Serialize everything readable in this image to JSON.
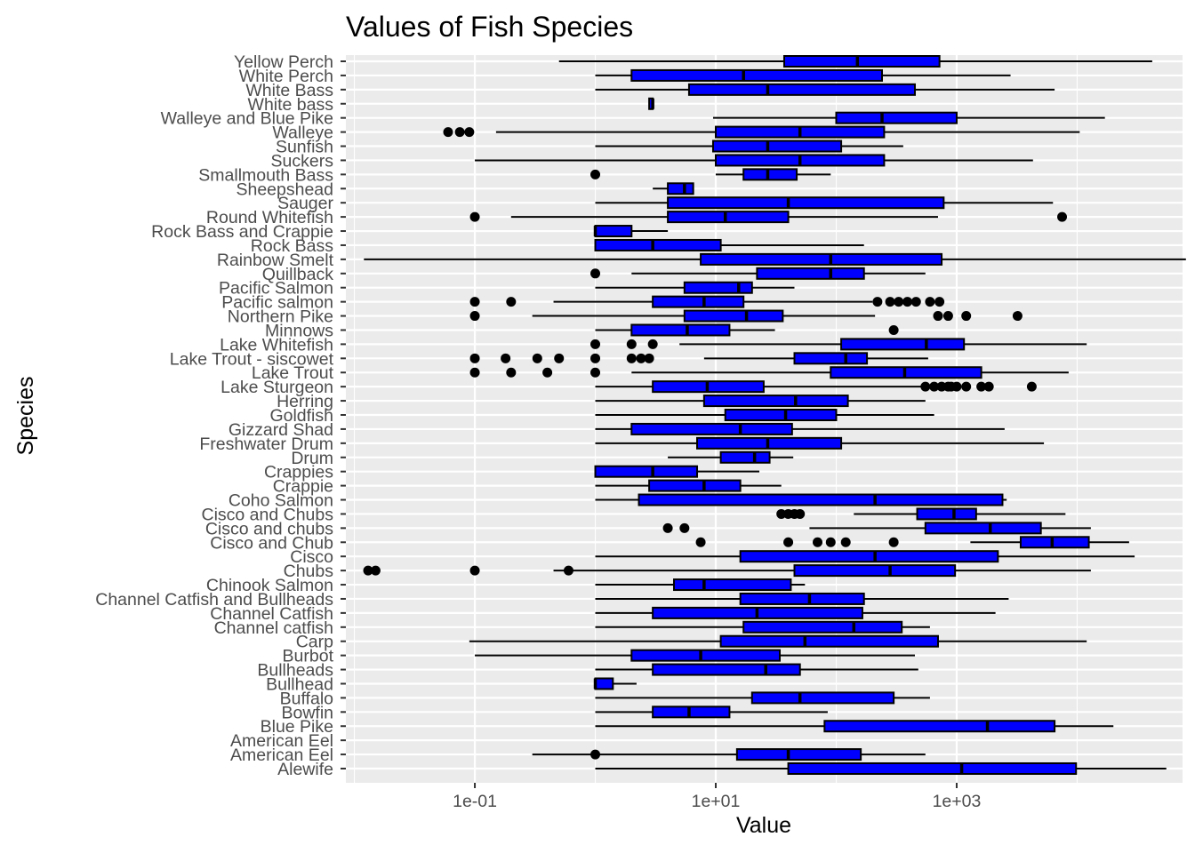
{
  "chart_data": {
    "type": "boxplot",
    "orientation": "horizontal",
    "title": "Values of Fish Species",
    "xlabel": "Value",
    "ylabel": "Species",
    "x_scale": "log10",
    "xlim": [
      0.0085,
      75000
    ],
    "x_ticks": [
      {
        "value": 0.1,
        "label": "1e-01"
      },
      {
        "value": 10,
        "label": "1e+01"
      },
      {
        "value": 1000,
        "label": "1e+03"
      }
    ],
    "box_color": "#0000ff",
    "panel_background": "#ebebeb",
    "categories": [
      "Alewife",
      "American Eel",
      "American Eel",
      "Blue Pike",
      "Bowfin",
      "Buffalo",
      "Bullhead",
      "Bullheads",
      "Burbot",
      "Carp",
      "Channel catfish",
      "Channel Catfish",
      "Channel Catfish and Bullheads",
      "Chinook Salmon",
      "Chubs",
      "Cisco",
      "Cisco and Chub",
      "Cisco and chubs",
      "Cisco and Chubs",
      "Coho Salmon",
      "Crappie",
      "Crappies",
      "Drum",
      "Freshwater Drum",
      "Gizzard Shad",
      "Goldfish",
      "Herring",
      "Lake Sturgeon",
      "Lake Trout",
      "Lake Trout - siscowet",
      "Lake Whitefish",
      "Minnows",
      "Northern Pike",
      "Pacific salmon",
      "Pacific Salmon",
      "Quillback",
      "Rainbow Smelt",
      "Rock Bass",
      "Rock Bass and Crappie",
      "Round Whitefish",
      "Sauger",
      "Sheepshead",
      "Smallmouth Bass",
      "Suckers",
      "Sunfish",
      "Walleye",
      "Walleye and Blue Pike",
      "White bass",
      "White Bass",
      "White Perch",
      "Yellow Perch"
    ],
    "series": [
      {
        "stats": [
          1,
          40,
          1100,
          9800,
          55000
        ],
        "outliers": []
      },
      {
        "stats": [
          0.3,
          15,
          40,
          160,
          550
        ],
        "outliers": [
          1
        ]
      },
      null,
      {
        "stats": [
          1,
          80,
          1800,
          6500,
          20000
        ],
        "outliers": []
      },
      {
        "stats": [
          1,
          3,
          6,
          13,
          85
        ],
        "outliers": []
      },
      {
        "stats": [
          1,
          20,
          50,
          300,
          600
        ],
        "outliers": []
      },
      {
        "stats": [
          1,
          1,
          1,
          1.4,
          2.2
        ],
        "outliers": []
      },
      {
        "stats": [
          1,
          3,
          26,
          50,
          480
        ],
        "outliers": []
      },
      {
        "stats": [
          0.1,
          2,
          7.5,
          34,
          450
        ],
        "outliers": []
      },
      {
        "stats": [
          0.09,
          11,
          55,
          700,
          12000
        ],
        "outliers": []
      },
      {
        "stats": [
          1,
          17,
          140,
          350,
          600
        ],
        "outliers": []
      },
      {
        "stats": [
          1,
          3,
          22,
          165,
          2100
        ],
        "outliers": []
      },
      {
        "stats": [
          1,
          16,
          60,
          170,
          2700
        ],
        "outliers": []
      },
      {
        "stats": [
          1,
          4.5,
          8,
          42,
          55
        ],
        "outliers": []
      },
      {
        "stats": [
          0.45,
          45,
          280,
          970,
          13000
        ],
        "outliers": [
          0.013,
          0.015,
          0.1,
          0.6
        ]
      },
      {
        "stats": [
          1,
          16,
          210,
          2200,
          30000
        ],
        "outliers": []
      },
      {
        "stats": [
          1300,
          3400,
          6200,
          12500,
          27000
        ],
        "outliers": [
          7.5,
          40,
          70,
          90,
          120,
          300
        ]
      },
      {
        "stats": [
          60,
          550,
          1900,
          5000,
          13000
        ],
        "outliers": [
          4,
          5.5
        ]
      },
      {
        "stats": [
          140,
          470,
          950,
          1450,
          8000
        ],
        "outliers": [
          35,
          40,
          45,
          50
        ]
      },
      {
        "stats": [
          1,
          2.3,
          210,
          2400,
          2600
        ],
        "outliers": []
      },
      {
        "stats": [
          1,
          2.8,
          8,
          16,
          35
        ],
        "outliers": []
      },
      {
        "stats": [
          1,
          1,
          3,
          7,
          23
        ],
        "outliers": []
      },
      {
        "stats": [
          4,
          11,
          21,
          28,
          44
        ],
        "outliers": []
      },
      {
        "stats": [
          1,
          7,
          27,
          110,
          5300
        ],
        "outliers": []
      },
      {
        "stats": [
          1,
          2,
          16,
          43,
          2500
        ],
        "outliers": []
      },
      {
        "stats": [
          1,
          12,
          38,
          100,
          650
        ],
        "outliers": []
      },
      {
        "stats": [
          1,
          8,
          46,
          125,
          550
        ],
        "outliers": []
      },
      {
        "stats": [
          1,
          3,
          8.5,
          25,
          650
        ],
        "outliers": [
          550,
          650,
          750,
          850,
          900,
          1000,
          1200,
          1600,
          1850,
          4200
        ]
      },
      {
        "stats": [
          2,
          90,
          370,
          1600,
          8500
        ],
        "outliers": [
          0.1,
          0.2,
          0.4,
          1
        ]
      },
      {
        "stats": [
          8,
          45,
          120,
          180,
          580
        ],
        "outliers": [
          0.1,
          0.18,
          0.33,
          0.5,
          1,
          2,
          2.4,
          2.8
        ]
      },
      {
        "stats": [
          5,
          110,
          560,
          1150,
          12000
        ],
        "outliers": [
          1,
          2,
          3
        ]
      },
      {
        "stats": [
          1,
          2,
          5.8,
          13,
          31
        ],
        "outliers": [
          300
        ]
      },
      {
        "stats": [
          0.3,
          5.5,
          18,
          36,
          210
        ],
        "outliers": [
          0.1,
          700,
          850,
          1200,
          3200
        ]
      },
      {
        "stats": [
          0.45,
          3,
          8,
          17,
          200
        ],
        "outliers": [
          0.1,
          0.2,
          220,
          280,
          330,
          390,
          460,
          600,
          720
        ]
      },
      {
        "stats": [
          1,
          5.5,
          15.5,
          20,
          45
        ],
        "outliers": []
      },
      {
        "stats": [
          2,
          22,
          90,
          170,
          550
        ],
        "outliers": [
          1
        ]
      },
      {
        "stats": [
          0.012,
          7.5,
          90,
          750,
          80000
        ],
        "outliers": []
      },
      {
        "stats": [
          1,
          1,
          3,
          11,
          170
        ],
        "outliers": []
      },
      {
        "stats": [
          1,
          1,
          1,
          2,
          4
        ],
        "outliers": []
      },
      {
        "stats": [
          0.2,
          4,
          12,
          40,
          700
        ],
        "outliers": [
          0.1,
          7500
        ]
      },
      {
        "stats": [
          1,
          4,
          40,
          780,
          6300
        ],
        "outliers": []
      },
      {
        "stats": [
          3,
          4,
          5.5,
          6.5,
          6.5
        ],
        "outliers": []
      },
      {
        "stats": [
          10,
          17,
          27,
          47,
          90
        ],
        "outliers": [
          1
        ]
      },
      {
        "stats": [
          0.1,
          10,
          50,
          250,
          4300
        ],
        "outliers": []
      },
      {
        "stats": [
          1,
          9.5,
          27,
          110,
          360
        ],
        "outliers": []
      },
      {
        "stats": [
          0.15,
          10,
          50,
          250,
          10500
        ],
        "outliers": [
          0.06,
          0.075,
          0.09
        ]
      },
      {
        "stats": [
          9.5,
          100,
          240,
          1000,
          17000
        ],
        "outliers": []
      },
      {
        "stats": [
          2.8,
          2.8,
          3,
          3,
          3
        ],
        "outliers": []
      },
      {
        "stats": [
          1,
          6,
          27,
          450,
          6500
        ],
        "outliers": []
      },
      {
        "stats": [
          1,
          2,
          17,
          240,
          2800
        ],
        "outliers": []
      },
      {
        "stats": [
          0.5,
          37,
          150,
          720,
          42000
        ],
        "outliers": []
      }
    ]
  }
}
